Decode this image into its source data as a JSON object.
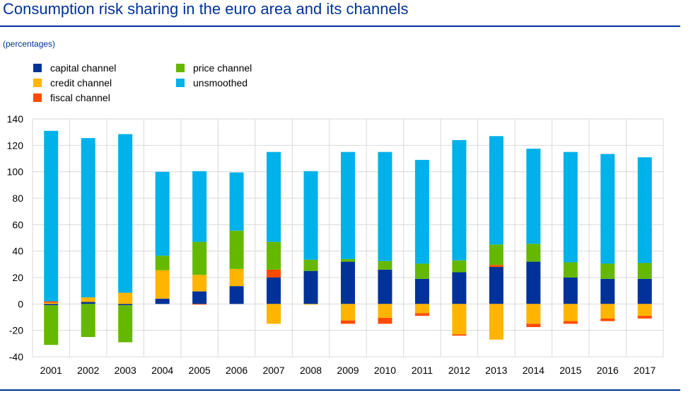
{
  "header": {
    "title": "Consumption risk sharing in the euro area and its channels",
    "subtitle": "(percentages)"
  },
  "chart_data": {
    "type": "bar",
    "stacked": true,
    "title": "Consumption risk sharing in the euro area and its channels",
    "ylabel": "",
    "xlabel": "",
    "ylim": [
      -40,
      140
    ],
    "yticks": [
      -40,
      -20,
      0,
      20,
      40,
      60,
      80,
      100,
      120,
      140
    ],
    "grid": true,
    "legend_position": "top-left",
    "categories": [
      "2001",
      "2002",
      "2003",
      "2004",
      "2005",
      "2006",
      "2007",
      "2008",
      "2009",
      "2010",
      "2011",
      "2012",
      "2013",
      "2014",
      "2015",
      "2016",
      "2017"
    ],
    "series": [
      {
        "name": "capital channel",
        "color": "#003299",
        "values": [
          -1,
          1.5,
          -1,
          4,
          9.5,
          13.5,
          20,
          25,
          32,
          26,
          19,
          24,
          28,
          32,
          20,
          19,
          19
        ]
      },
      {
        "name": "credit channel",
        "color": "#FFB400",
        "values": [
          1,
          3.5,
          8.5,
          21.5,
          12.5,
          13,
          -15,
          -0.5,
          -12.5,
          -10.5,
          -7,
          -23,
          -27,
          -15,
          -13,
          -11,
          -9
        ]
      },
      {
        "name": "fiscal channel",
        "color": "#FF4B00",
        "values": [
          1,
          0,
          0,
          0,
          -0.5,
          0,
          6,
          0,
          -2.5,
          -4.5,
          -2,
          -1,
          1.5,
          -2.5,
          -2,
          -2,
          -2
        ]
      },
      {
        "name": "price channel",
        "color": "#65B800",
        "values": [
          -30,
          -25,
          -28,
          11,
          25,
          29,
          21,
          8.5,
          2,
          6.5,
          11.5,
          9,
          15.5,
          13.5,
          11.5,
          11.5,
          12
        ]
      },
      {
        "name": "unsmoothed",
        "color": "#00B1EA",
        "values": [
          129,
          120.5,
          120,
          63.5,
          53.5,
          44,
          68,
          67,
          81,
          82.5,
          78.5,
          91,
          82,
          72,
          83.5,
          83,
          80
        ]
      }
    ]
  },
  "legend": {
    "col1": [
      {
        "label": "capital channel",
        "color": "#003299"
      },
      {
        "label": "credit channel",
        "color": "#FFB400"
      },
      {
        "label": "fiscal channel",
        "color": "#FF4B00"
      }
    ],
    "col2": [
      {
        "label": "price channel",
        "color": "#65B800"
      },
      {
        "label": "unsmoothed",
        "color": "#00B1EA"
      }
    ]
  }
}
